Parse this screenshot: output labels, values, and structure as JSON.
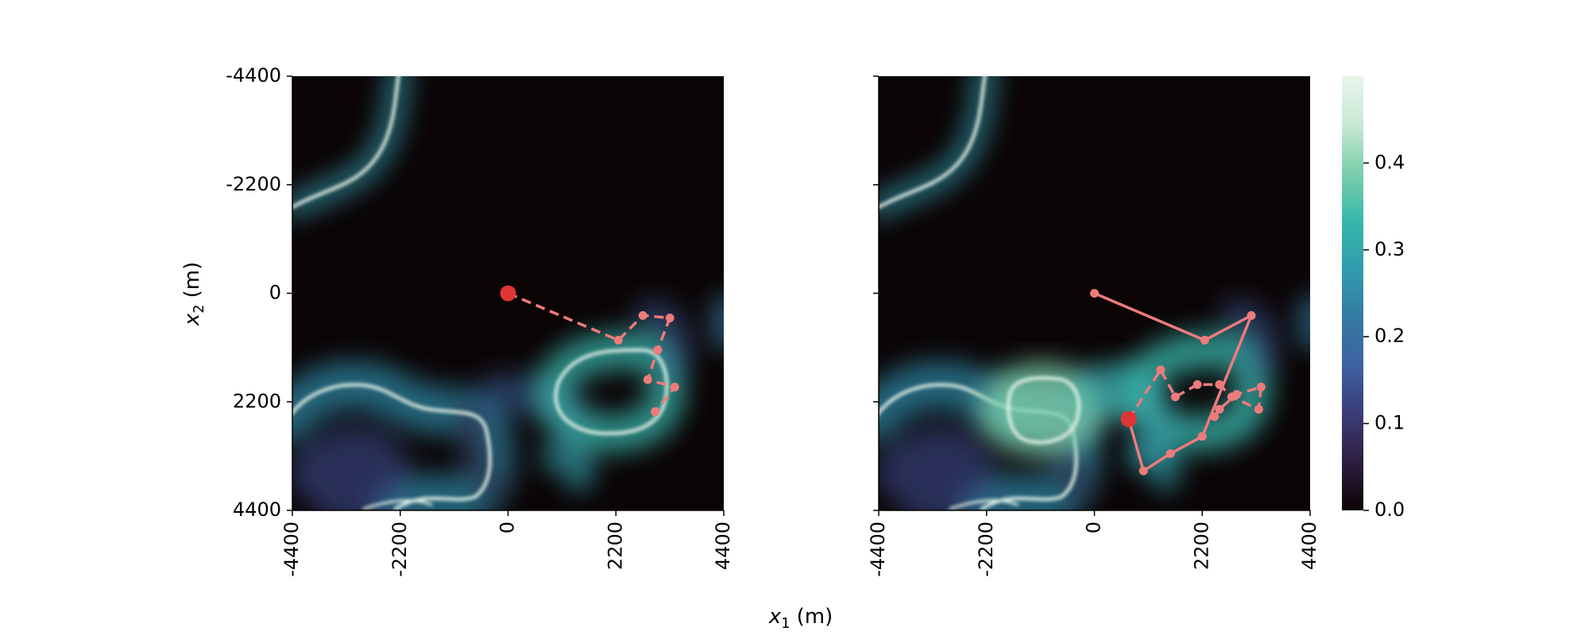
{
  "chart_data": {
    "type": "heatmap",
    "axis_labels": {
      "x_var": "x",
      "x_sub": "1",
      "x_unit": "(m)",
      "y_var": "x",
      "y_sub": "2",
      "y_unit": "(m)"
    },
    "xlim": [
      -4400,
      4400
    ],
    "ylim": [
      -4400,
      4400
    ],
    "y_inverted": true,
    "x_ticks": [
      "-4400",
      "-2200",
      "0",
      "2200",
      "4400"
    ],
    "y_ticks": [
      "-4400",
      "-2200",
      "0",
      "2200",
      "4400"
    ],
    "colormap": {
      "name": "mako-like",
      "range": [
        0.0,
        0.5
      ],
      "ticks": [
        "0.0",
        "0.1",
        "0.2",
        "0.3",
        "0.4"
      ],
      "colors": [
        "#0b0405",
        "#2d1e3e",
        "#3b3c77",
        "#3d61a1",
        "#357ba3",
        "#309bae",
        "#36b8ab",
        "#7ccfab",
        "#c8e9d6",
        "#e8f5ea"
      ]
    },
    "path_color": "#ee7b7b",
    "start_color": "#e03535",
    "panels": [
      {
        "name": "left",
        "start": [
          0,
          0
        ],
        "path_dashed": [
          [
            0,
            0
          ],
          [
            2250,
            950
          ],
          [
            2750,
            450
          ],
          [
            3300,
            500
          ],
          [
            3050,
            1150
          ],
          [
            2850,
            1750
          ],
          [
            3400,
            1900
          ],
          [
            3000,
            2400
          ]
        ]
      },
      {
        "name": "right",
        "start": [
          700,
          2550
        ],
        "path_solid": [
          [
            0,
            0
          ],
          [
            2250,
            950
          ],
          [
            3200,
            450
          ],
          [
            2200,
            2900
          ],
          [
            1550,
            3250
          ],
          [
            1000,
            3600
          ],
          [
            700,
            2550
          ]
        ],
        "path_dashed": [
          [
            700,
            2550
          ],
          [
            1350,
            1550
          ],
          [
            1650,
            2100
          ],
          [
            2100,
            1850
          ],
          [
            2550,
            1850
          ],
          [
            2800,
            2100
          ],
          [
            3350,
            2350
          ],
          [
            3400,
            1900
          ],
          [
            2900,
            2050
          ],
          [
            2550,
            2350
          ],
          [
            2450,
            2500
          ]
        ]
      }
    ]
  }
}
